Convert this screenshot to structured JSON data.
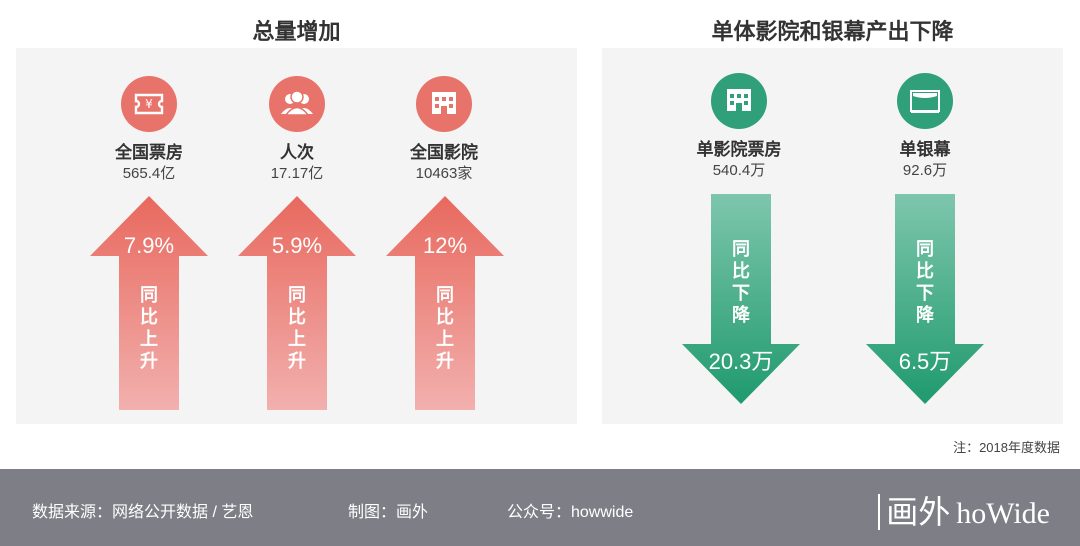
{
  "left": {
    "title": "总量增加",
    "items": [
      {
        "icon": "ticket-yuan-icon",
        "name": "全国票房",
        "value": "565.4亿",
        "change_label": "7.9%",
        "direction_text": [
          "同",
          "比",
          "上",
          "升"
        ]
      },
      {
        "icon": "people-icon",
        "name": "人次",
        "value": "17.17亿",
        "change_label": "5.9%",
        "direction_text": [
          "同",
          "比",
          "上",
          "升"
        ]
      },
      {
        "icon": "cinema-building-icon",
        "name": "全国影院",
        "value": "10463家",
        "change_label": "12%",
        "direction_text": [
          "同",
          "比",
          "上",
          "升"
        ]
      }
    ]
  },
  "right": {
    "title": "单体影院和银幕产出下降",
    "items": [
      {
        "icon": "cinema-building-icon",
        "name": "单影院票房",
        "value": "540.4万",
        "change_label": "20.3万",
        "direction_text": [
          "同",
          "比",
          "下",
          "降"
        ]
      },
      {
        "icon": "screen-icon",
        "name": "单银幕",
        "value": "92.6万",
        "change_label": "6.5万",
        "direction_text": [
          "同",
          "比",
          "下",
          "降"
        ]
      }
    ]
  },
  "note": "注：2018年度数据",
  "footer": {
    "source": "数据来源：网络公开数据 / 艺恩",
    "credit": "制图：画外",
    "wechat": "公众号：howwide",
    "logo_cn": "画外",
    "logo_en": "hoWide"
  },
  "colors": {
    "up_accent": "#e8736a",
    "down_accent": "#2fa07a",
    "panel_bg": "#f4f4f4",
    "footer_bg": "#7d7e86"
  },
  "chart_data": {
    "type": "table",
    "groups": [
      {
        "title": "总量增加",
        "rows": [
          {
            "metric": "全国票房",
            "value": 565.4,
            "unit": "亿",
            "yoy_change_pct": 7.9,
            "direction": "up"
          },
          {
            "metric": "人次",
            "value": 17.17,
            "unit": "亿",
            "yoy_change_pct": 5.9,
            "direction": "up"
          },
          {
            "metric": "全国影院",
            "value": 10463,
            "unit": "家",
            "yoy_change_pct": 12,
            "direction": "up"
          }
        ]
      },
      {
        "title": "单体影院和银幕产出下降",
        "rows": [
          {
            "metric": "单影院票房",
            "value": 540.4,
            "unit": "万",
            "yoy_change": 20.3,
            "change_unit": "万",
            "direction": "down"
          },
          {
            "metric": "单银幕",
            "value": 92.6,
            "unit": "万",
            "yoy_change": 6.5,
            "change_unit": "万",
            "direction": "down"
          }
        ]
      }
    ]
  }
}
